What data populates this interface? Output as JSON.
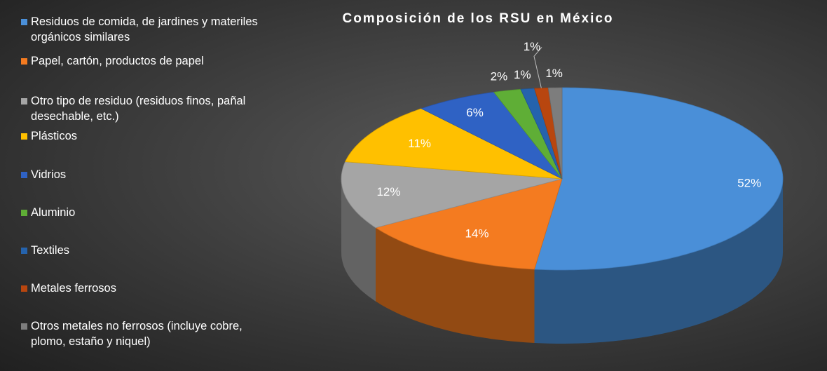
{
  "chart_data": {
    "type": "pie3d",
    "title": "Composición de los RSU en México",
    "categories": [
      "Residuos de comida, de jardines y materiles orgánicos similares",
      "Papel, cartón, productos de papel",
      "Otro tipo de residuo (residuos finos, pañal desechable, etc.)",
      "Plásticos",
      "Vidrios",
      "Aluminio",
      "Textiles",
      "Metales ferrosos",
      "Otros metales no ferrosos (incluye cobre, plomo, estaño y niquel)"
    ],
    "values": [
      52,
      14,
      12,
      11,
      6,
      2,
      1,
      1,
      1
    ],
    "value_labels": [
      "52%",
      "14%",
      "12%",
      "11%",
      "6%",
      "2%",
      "1%",
      "1%",
      "1%"
    ],
    "colors": [
      "#4a8fd8",
      "#f47b20",
      "#a5a5a5",
      "#ffc000",
      "#2f62c4",
      "#5fae36",
      "#2563ad",
      "#b8460f",
      "#7d7d7d"
    ],
    "legend": "left"
  }
}
